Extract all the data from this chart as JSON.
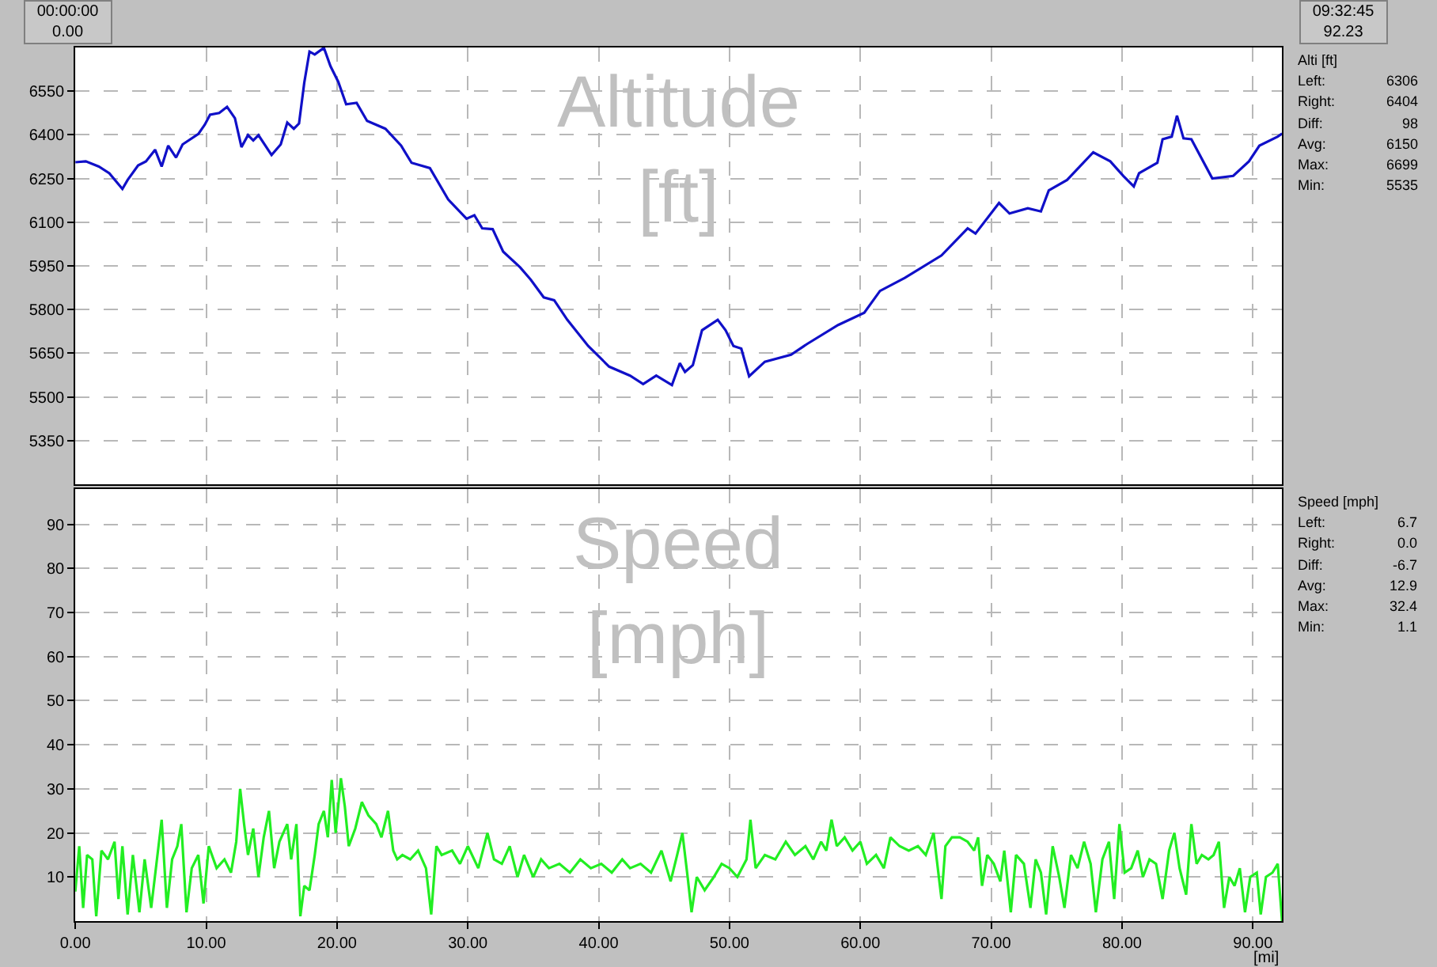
{
  "chart_data": [
    {
      "type": "line",
      "title": "Altitude\n[ft]",
      "annotations": [
        "00:00:00\n0.00",
        "09:32:45\n92.23",
        "Alti [ft]",
        "Left:\t6306",
        "Right:\t6404",
        "Diff:\t98",
        "Avg:\t6150",
        "Max:\t6699",
        "Min:\t5535"
      ],
      "xlim": [
        0,
        92.23
      ],
      "xticks": [
        {
          "value": 0,
          "label": null
        },
        {
          "value": 10,
          "label": null
        },
        {
          "value": 20,
          "label": null
        },
        {
          "value": 30,
          "label": null
        },
        {
          "value": 40,
          "label": null
        },
        {
          "value": 50,
          "label": null
        },
        {
          "value": 60,
          "label": null
        },
        {
          "value": 70,
          "label": null
        },
        {
          "value": 80,
          "label": null
        },
        {
          "value": 90,
          "label": null
        }
      ],
      "ylim": [
        5200,
        6700
      ],
      "yticks": [
        5350,
        5500,
        5650,
        5800,
        5950,
        6100,
        6250,
        6400,
        6550
      ],
      "tick_labels": "y",
      "grid": true,
      "series": [
        {
          "color": "#1010c8",
          "x": [
            0,
            0.8,
            1.8,
            2.6,
            3.6,
            4.0,
            4.8,
            5.4,
            6.1,
            6.6,
            7.1,
            7.7,
            8.2,
            9.4,
            9.9,
            10.3,
            11.0,
            11.6,
            12.2,
            12.7,
            13.2,
            13.6,
            14.0,
            15.0,
            15.7,
            16.2,
            16.7,
            17.1,
            17.5,
            17.9,
            18.3,
            19.0,
            19.5,
            20.1,
            20.7,
            21.5,
            22.3,
            23.7,
            24.9,
            25.7,
            27.1,
            28.5,
            29.9,
            30.5,
            31.1,
            31.9,
            32.7,
            34.0,
            34.8,
            35.8,
            36.6,
            37.6,
            39.2,
            40.8,
            42.4,
            43.4,
            44.4,
            45.6,
            46.2,
            46.6,
            47.2,
            47.9,
            49.1,
            49.7,
            50.3,
            50.9,
            51.5,
            52.7,
            54.7,
            55.9,
            58.3,
            60.3,
            61.5,
            63.4,
            66.2,
            68.2,
            68.8,
            70.6,
            71.4,
            72.8,
            73.8,
            74.4,
            75.8,
            77.8,
            79.1,
            80.1,
            80.9,
            81.3,
            82.7,
            83.1,
            83.8,
            84.2,
            84.7,
            85.3,
            86.9,
            88.5,
            89.7,
            90.5,
            91.9,
            92.23
          ],
          "values": [
            6306,
            6309,
            6291,
            6268,
            6214,
            6245,
            6295,
            6309,
            6349,
            6291,
            6363,
            6322,
            6367,
            6403,
            6435,
            6469,
            6475,
            6496,
            6457,
            6358,
            6399,
            6381,
            6399,
            6331,
            6367,
            6442,
            6421,
            6439,
            6579,
            6686,
            6676,
            6699,
            6636,
            6582,
            6505,
            6510,
            6448,
            6421,
            6363,
            6304,
            6286,
            6178,
            6112,
            6124,
            6079,
            6076,
            5999,
            5945,
            5903,
            5842,
            5832,
            5765,
            5675,
            5604,
            5573,
            5544,
            5573,
            5541,
            5616,
            5586,
            5609,
            5729,
            5765,
            5729,
            5675,
            5666,
            5571,
            5621,
            5645,
            5681,
            5747,
            5789,
            5864,
            5909,
            5986,
            6079,
            6061,
            6166,
            6130,
            6148,
            6137,
            6209,
            6245,
            6340,
            6309,
            6259,
            6223,
            6268,
            6304,
            6385,
            6394,
            6466,
            6388,
            6385,
            6250,
            6259,
            6309,
            6363,
            6394,
            6404
          ]
        }
      ]
    },
    {
      "type": "line",
      "title": "Speed\n[mph]",
      "xlabel": "[mi]",
      "annotations": [
        "Speed [mph]",
        "Left:\t6.7",
        "Right:\t0.0",
        "Diff:\t-6.7",
        "Avg:\t12.9",
        "Max:\t32.4",
        "Min:\t1.1"
      ],
      "xlim": [
        0,
        92.23
      ],
      "xticks": [
        {
          "value": 0,
          "label": "0.00"
        },
        {
          "value": 10,
          "label": "10.00"
        },
        {
          "value": 20,
          "label": "20.00"
        },
        {
          "value": 30,
          "label": "30.00"
        },
        {
          "value": 40,
          "label": "40.00"
        },
        {
          "value": 50,
          "label": "50.00"
        },
        {
          "value": 60,
          "label": "60.00"
        },
        {
          "value": 70,
          "label": "70.00"
        },
        {
          "value": 80,
          "label": "80.00"
        },
        {
          "value": 90,
          "label": "90.00"
        }
      ],
      "ylim": [
        0,
        98
      ],
      "yticks": [
        10,
        20,
        30,
        40,
        50,
        60,
        70,
        80,
        90
      ],
      "grid": true,
      "series": [
        {
          "color": "#22ee22",
          "x": [
            0,
            0.3,
            0.6,
            0.9,
            1.3,
            1.6,
            2.0,
            2.5,
            3.0,
            3.3,
            3.6,
            4.0,
            4.4,
            4.9,
            5.3,
            5.8,
            6.2,
            6.6,
            7.0,
            7.4,
            7.8,
            8.1,
            8.5,
            8.9,
            9.4,
            9.8,
            10.2,
            10.8,
            11.4,
            11.9,
            12.3,
            12.6,
            12.9,
            13.2,
            13.6,
            14.0,
            14.4,
            14.8,
            15.2,
            15.6,
            16.2,
            16.5,
            16.9,
            17.2,
            17.5,
            17.9,
            18.3,
            18.6,
            19.0,
            19.3,
            19.6,
            19.9,
            20.3,
            20.6,
            20.9,
            21.4,
            21.9,
            22.4,
            23.0,
            23.4,
            23.9,
            24.3,
            24.6,
            25.0,
            25.6,
            26.2,
            26.8,
            27.2,
            27.6,
            28.0,
            28.8,
            29.4,
            30.0,
            30.8,
            31.5,
            32.0,
            32.6,
            33.2,
            33.8,
            34.3,
            35.0,
            35.6,
            36.2,
            37.0,
            37.8,
            38.6,
            39.4,
            40.2,
            41.0,
            41.8,
            42.4,
            43.2,
            44.0,
            44.8,
            45.5,
            46.0,
            46.4,
            46.8,
            47.1,
            47.5,
            48.1,
            48.8,
            49.4,
            50.0,
            50.6,
            51.3,
            51.6,
            52.0,
            52.7,
            53.5,
            54.3,
            55.0,
            55.8,
            56.4,
            57.0,
            57.4,
            57.8,
            58.2,
            58.8,
            59.4,
            60.0,
            60.5,
            61.2,
            61.8,
            62.3,
            63.0,
            63.7,
            64.4,
            65.0,
            65.6,
            66.0,
            66.2,
            66.5,
            67.0,
            67.6,
            68.2,
            68.7,
            69.0,
            69.3,
            69.7,
            70.2,
            70.7,
            71.0,
            71.5,
            71.9,
            72.5,
            73.0,
            73.4,
            73.8,
            74.2,
            74.7,
            75.2,
            75.6,
            76.1,
            76.6,
            77.1,
            77.6,
            78.0,
            78.5,
            79.0,
            79.4,
            79.8,
            80.2,
            80.7,
            81.2,
            81.6,
            82.1,
            82.6,
            83.1,
            83.6,
            84.0,
            84.4,
            84.9,
            85.3,
            85.7,
            86.1,
            86.6,
            87.0,
            87.4,
            87.8,
            88.2,
            88.6,
            89.0,
            89.4,
            89.8,
            90.3,
            90.6,
            91.0,
            91.5,
            91.9,
            92.23
          ],
          "values": [
            6.7,
            17,
            3,
            15,
            14,
            1.1,
            16,
            14,
            18,
            5,
            17,
            1.5,
            15,
            2,
            14,
            3,
            13,
            23,
            3,
            14,
            17,
            22,
            2,
            12,
            15,
            4,
            17,
            12,
            14,
            11,
            18,
            30,
            22,
            15,
            21,
            10,
            19,
            25,
            12,
            18,
            22,
            14,
            22,
            1.1,
            8,
            7,
            15,
            22,
            25,
            19,
            32,
            20,
            32.4,
            26,
            17,
            21,
            27,
            24,
            22,
            19,
            25,
            16,
            14,
            15,
            14,
            16,
            12,
            1.5,
            17,
            15,
            16,
            13,
            17,
            12,
            20,
            14,
            13,
            17,
            10,
            15,
            10,
            14,
            12,
            13,
            11,
            14,
            12,
            13,
            11,
            14,
            12,
            13,
            11,
            16,
            9,
            15,
            20,
            10,
            2,
            10,
            7,
            10,
            13,
            12,
            10,
            14,
            23,
            12,
            15,
            14,
            18,
            15,
            17,
            14,
            18,
            16,
            23,
            17,
            19,
            16,
            18,
            13,
            15,
            12,
            19,
            17,
            16,
            17,
            15,
            20,
            10,
            5,
            17,
            19,
            19,
            18,
            16,
            19,
            8,
            15,
            13,
            9,
            16,
            2,
            15,
            13,
            3,
            14,
            11,
            1.5,
            17,
            10,
            3,
            15,
            12,
            18,
            13,
            2,
            14,
            18,
            5,
            22,
            11,
            12,
            16,
            10,
            14,
            13,
            5,
            16,
            20,
            12,
            6,
            22,
            13,
            15,
            14,
            15,
            18,
            3,
            10,
            8,
            12,
            2,
            10,
            11,
            1.5,
            10,
            11,
            13,
            0.0
          ]
        }
      ]
    }
  ]
}
